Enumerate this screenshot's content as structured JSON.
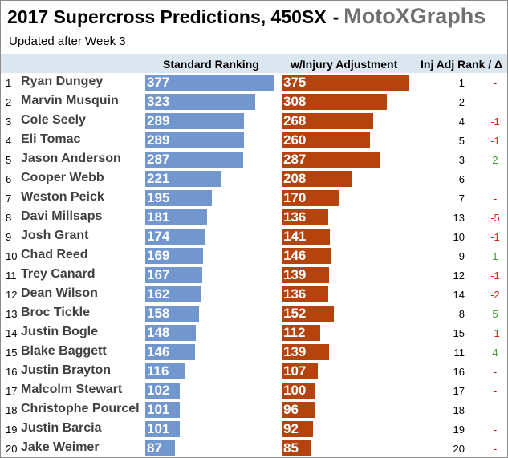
{
  "title": {
    "main": "2017 Supercross Predictions, 450SX",
    "separator": "-",
    "brand": "MotoXGraphs"
  },
  "subtitle": "Updated after Week 3",
  "headers": {
    "standard": "Standard Ranking",
    "injury": "w/Injury Adjustment",
    "inj_rank": "Inj Adj Rank / Δ"
  },
  "colors": {
    "standard_bar": "#7297cf",
    "injury_bar": "#b5430d",
    "header_band": "#dce6f1",
    "delta_negative": "#e02020",
    "delta_positive": "#3c9a2c",
    "delta_neutral": "#c00000"
  },
  "chart_data": {
    "type": "bar",
    "orientation": "horizontal",
    "categories": [
      "Ryan Dungey",
      "Marvin Musquin",
      "Cole Seely",
      "Eli Tomac",
      "Jason Anderson",
      "Cooper Webb",
      "Weston Peick",
      "Davi Millsaps",
      "Josh Grant",
      "Chad Reed",
      "Trey Canard",
      "Dean Wilson",
      "Broc Tickle",
      "Justin Bogle",
      "Blake Baggett",
      "Justin Brayton",
      "Malcolm Stewart",
      "Christophe Pourcel",
      "Justin Barcia",
      "Jake Weimer"
    ],
    "ranks": [
      "1",
      "2",
      "3",
      "4",
      "5",
      "6",
      "7",
      "8",
      "9",
      "10",
      "11",
      "12",
      "13",
      "14",
      "15",
      "16",
      "17",
      "18",
      "19",
      "20"
    ],
    "series": [
      {
        "name": "Standard Ranking",
        "values": [
          377,
          323,
          289,
          289,
          287,
          221,
          195,
          181,
          174,
          169,
          167,
          162,
          158,
          148,
          146,
          116,
          102,
          101,
          101,
          87
        ]
      },
      {
        "name": "w/Injury Adjustment",
        "values": [
          375,
          308,
          268,
          260,
          287,
          208,
          170,
          136,
          141,
          146,
          139,
          136,
          152,
          112,
          139,
          107,
          100,
          96,
          92,
          85
        ]
      }
    ],
    "inj_adj_rank": [
      "1",
      "2",
      "4",
      "5",
      "3",
      "6",
      "7",
      "13",
      "10",
      "9",
      "12",
      "14",
      "8",
      "15",
      "11",
      "16",
      "17",
      "18",
      "19",
      "20"
    ],
    "delta": [
      "-",
      "-",
      "-1",
      "-1",
      "2",
      "-",
      "-",
      "-5",
      "-1",
      "1",
      "-1",
      "-2",
      "5",
      "-1",
      "4",
      "-",
      "-",
      "-",
      "-",
      "-"
    ],
    "xlim": [
      0,
      377
    ]
  }
}
